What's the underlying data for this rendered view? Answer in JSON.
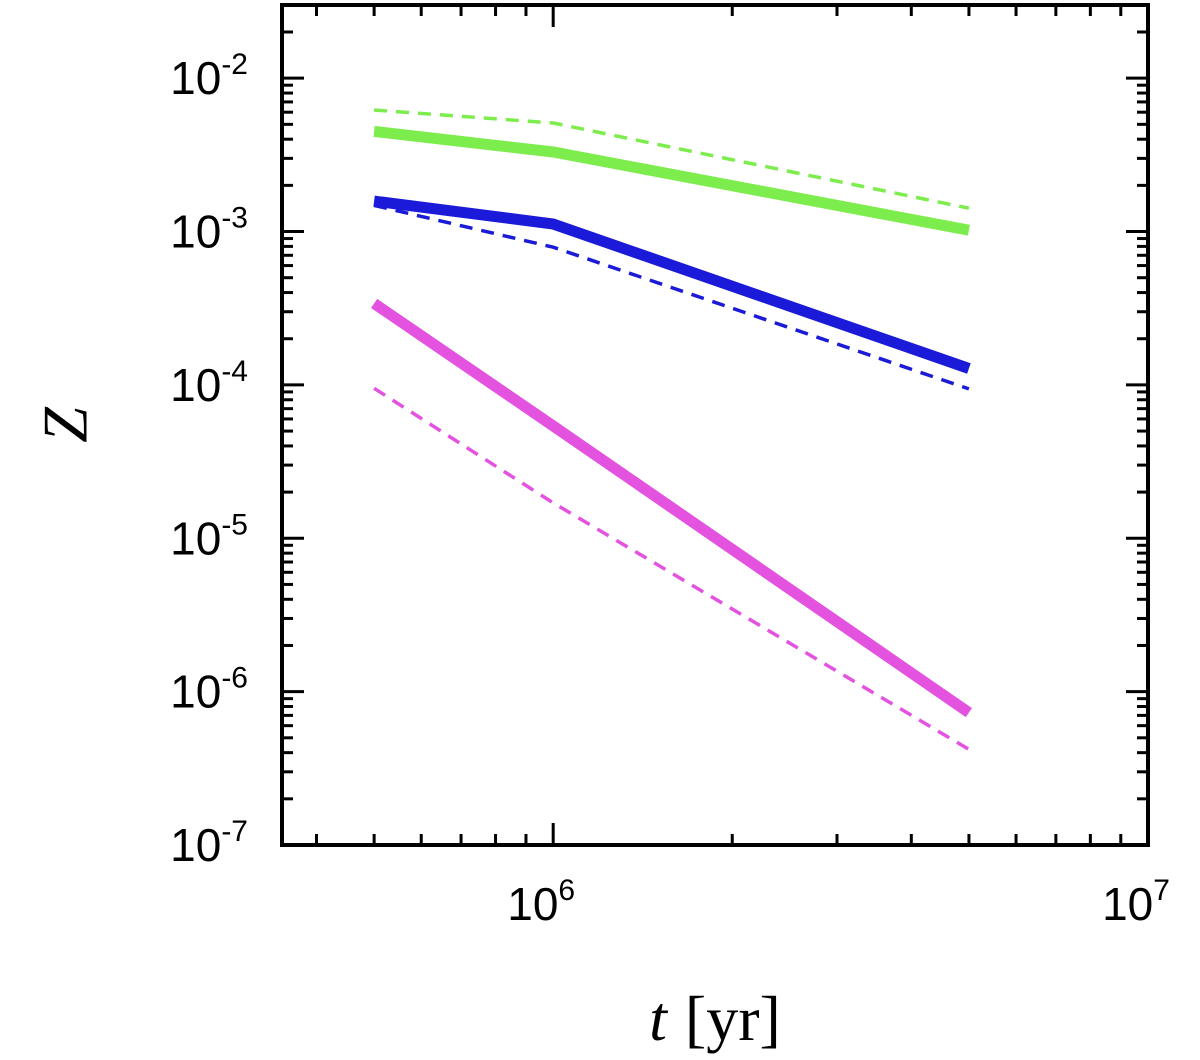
{
  "chart_data": {
    "type": "line",
    "title": "",
    "xlabel": {
      "symbol": "t",
      "unit": "[yr]"
    },
    "ylabel": "Z",
    "xscale": "log",
    "yscale": "log",
    "xlim": [
      350000,
      10000000
    ],
    "ylim": [
      1e-07,
      0.03
    ],
    "x_ticks": [
      {
        "value": 1000000,
        "base": "10",
        "exp": "6"
      },
      {
        "value": 10000000,
        "base": "10",
        "exp": "7"
      }
    ],
    "y_ticks": [
      {
        "value": 1e-07,
        "base": "10",
        "exp": "-7"
      },
      {
        "value": 1e-06,
        "base": "10",
        "exp": "-6"
      },
      {
        "value": 1e-05,
        "base": "10",
        "exp": "-5"
      },
      {
        "value": 0.0001,
        "base": "10",
        "exp": "-4"
      },
      {
        "value": 0.001,
        "base": "10",
        "exp": "-3"
      },
      {
        "value": 0.01,
        "base": "10",
        "exp": "-2"
      }
    ],
    "grid": false,
    "legend": "none",
    "series": [
      {
        "color": "#7ded4d",
        "style": "solid",
        "x": [
          500000,
          1000000,
          5000000
        ],
        "y": [
          0.0045,
          0.0033,
          0.00102
        ]
      },
      {
        "color": "#7ded4d",
        "style": "dashed",
        "x": [
          500000,
          1000000,
          5000000
        ],
        "y": [
          0.0062,
          0.0051,
          0.00142
        ]
      },
      {
        "color": "#1a1ad8",
        "style": "solid",
        "x": [
          500000,
          1000000,
          5000000
        ],
        "y": [
          0.00158,
          0.00112,
          0.000128
        ]
      },
      {
        "color": "#1a1ad8",
        "style": "dashed",
        "x": [
          500000,
          1000000,
          5000000
        ],
        "y": [
          0.00148,
          0.00079,
          9.42e-05
        ]
      },
      {
        "color": "#e452e0",
        "style": "solid",
        "x": [
          500000,
          1000000,
          5000000
        ],
        "y": [
          0.00034,
          5.4e-05,
          7.3e-07
        ]
      },
      {
        "color": "#e452e0",
        "style": "dashed",
        "x": [
          500000,
          1000000,
          5000000
        ],
        "y": [
          9.5e-05,
          1.7e-05,
          4.2e-07
        ]
      }
    ]
  }
}
